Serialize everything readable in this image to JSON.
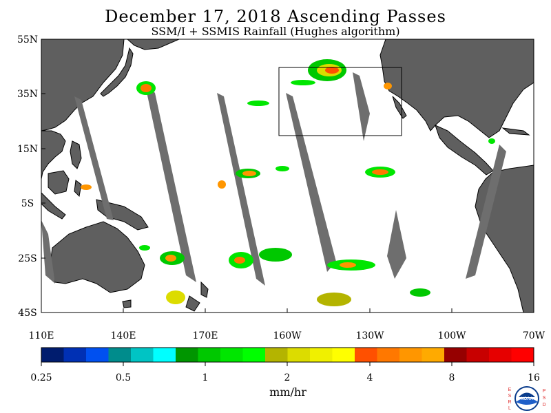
{
  "title": "December 17, 2018  Ascending Passes",
  "subtitle": "SSM/I + SSMIS Rainfall (Hughes algorithm)",
  "lat_labels": [
    "55N",
    "35N",
    "15N",
    "5S",
    "25S",
    "45S"
  ],
  "lon_labels": [
    "110E",
    "140E",
    "170E",
    "160W",
    "130W",
    "100W",
    "70W"
  ],
  "colorbar": {
    "colors": [
      "#001c6e",
      "#0030b4",
      "#0050f0",
      "#008c8c",
      "#00c4c4",
      "#00ffff",
      "#009600",
      "#00c800",
      "#00e600",
      "#00ff00",
      "#b4b400",
      "#dcdc00",
      "#f0f000",
      "#ffff00",
      "#ff5000",
      "#ff7800",
      "#ff9600",
      "#ffaa00",
      "#960000",
      "#c80000",
      "#e60000",
      "#ff0000"
    ],
    "tick_labels": [
      "0.25",
      "0.5",
      "1",
      "2",
      "4",
      "8",
      "16"
    ],
    "units": "mm/hr"
  },
  "logo_letters": {
    "left": [
      "E",
      "S",
      "R",
      "L"
    ],
    "right": [
      "P",
      "S",
      "D"
    ],
    "center": "NOAA"
  },
  "colors": {
    "land": "#5f5f5f",
    "swath_gap": "#6e6e6e",
    "ocean": "#ffffff",
    "box": "#000000"
  }
}
